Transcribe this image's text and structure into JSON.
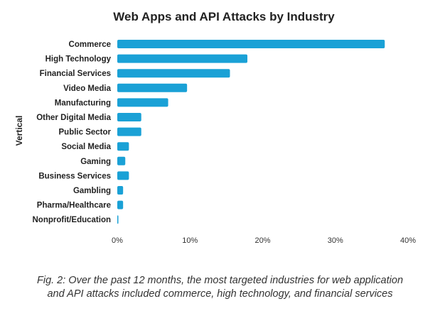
{
  "chart_data": {
    "type": "bar",
    "orientation": "horizontal",
    "title": "Web Apps and API Attacks by Industry",
    "xlabel": "",
    "ylabel": "Vertical",
    "categories": [
      "Commerce",
      "High Technology",
      "Financial Services",
      "Video Media",
      "Manufacturing",
      "Other Digital Media",
      "Public Sector",
      "Social Media",
      "Gaming",
      "Business Services",
      "Gambling",
      "Pharma/Healthcare",
      "Nonprofit/Education"
    ],
    "values": [
      36.8,
      17.9,
      15.5,
      9.6,
      7.0,
      3.3,
      3.3,
      1.6,
      1.1,
      1.6,
      0.8,
      0.8,
      0.1
    ],
    "value_format": "percent",
    "xlim": [
      0,
      40
    ],
    "xticks": [
      0,
      10,
      20,
      30,
      40
    ],
    "xtick_labels": [
      "0%",
      "10%",
      "20%",
      "30%",
      "40%"
    ],
    "grid": false,
    "legend": "none",
    "bar_color": "#1aa1d6"
  },
  "caption": {
    "line1": "Fig. 2: Over the past 12 months, the most targeted industries for web application",
    "line2": "and API attacks included commerce, high technology, and financial services"
  }
}
